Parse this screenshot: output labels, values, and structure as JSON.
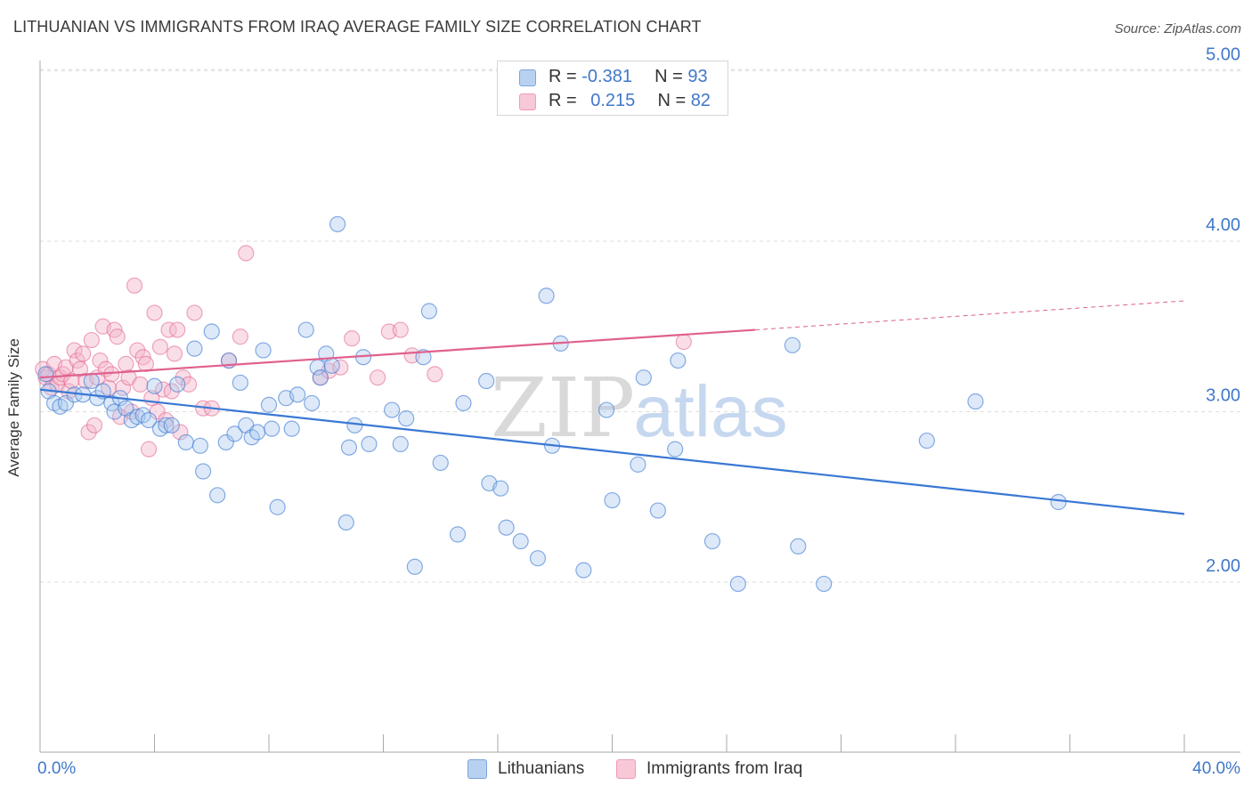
{
  "title": "LITHUANIAN VS IMMIGRANTS FROM IRAQ AVERAGE FAMILY SIZE CORRELATION CHART",
  "source": "Source: ZipAtlas.com",
  "watermark": {
    "zip": "ZIP",
    "atlas": "atlas"
  },
  "colors": {
    "blue": "#3a78d4",
    "blue_fill": "#a9c8ee",
    "pink": "#e0608e",
    "pink_fill": "#f4b6ca",
    "axis_label": "#3f78c9",
    "grid": "#dddddd"
  },
  "legend_top": {
    "rows": [
      {
        "r_label": "R = ",
        "r_value": "-0.381",
        "n_label": "N = ",
        "n_value": "93"
      },
      {
        "r_label": "R = ",
        "r_value": "0.215",
        "n_label": "N = ",
        "n_value": "82"
      }
    ]
  },
  "legend_bottom": {
    "series1": "Lithuanians",
    "series2": "Immigrants from Iraq"
  },
  "chart_data": {
    "type": "scatter",
    "title": "LITHUANIAN VS IMMIGRANTS FROM IRAQ AVERAGE FAMILY SIZE CORRELATION CHART",
    "xlabel": "",
    "ylabel": "Average Family Size",
    "xlim": [
      0,
      40
    ],
    "ylim": [
      1.0,
      5.2
    ],
    "x_tick_labels": [
      "0.0%",
      "40.0%"
    ],
    "y_ticks": [
      2.0,
      3.0,
      4.0,
      5.0
    ],
    "y_tick_labels": [
      "2.00",
      "3.00",
      "4.00",
      "5.00"
    ],
    "grid": true,
    "series": [
      {
        "name": "Lithuanians",
        "r": -0.381,
        "n": 93,
        "trend": {
          "x": [
            0,
            40
          ],
          "y": [
            3.13,
            2.4
          ]
        },
        "points": [
          [
            0.2,
            3.22
          ],
          [
            0.3,
            3.12
          ],
          [
            0.5,
            3.05
          ],
          [
            0.7,
            3.03
          ],
          [
            0.9,
            3.05
          ],
          [
            1.2,
            3.1
          ],
          [
            1.5,
            3.1
          ],
          [
            1.8,
            3.18
          ],
          [
            2.0,
            3.08
          ],
          [
            2.2,
            3.12
          ],
          [
            2.5,
            3.05
          ],
          [
            2.6,
            3.0
          ],
          [
            2.8,
            3.08
          ],
          [
            3.0,
            3.02
          ],
          [
            3.2,
            2.95
          ],
          [
            3.4,
            2.97
          ],
          [
            3.6,
            2.98
          ],
          [
            3.8,
            2.95
          ],
          [
            4.0,
            3.15
          ],
          [
            4.2,
            2.9
          ],
          [
            4.4,
            2.92
          ],
          [
            4.6,
            2.92
          ],
          [
            4.8,
            3.16
          ],
          [
            5.1,
            2.82
          ],
          [
            5.4,
            3.37
          ],
          [
            5.6,
            2.8
          ],
          [
            5.7,
            2.65
          ],
          [
            6.0,
            3.47
          ],
          [
            6.2,
            2.51
          ],
          [
            6.5,
            2.82
          ],
          [
            6.6,
            3.3
          ],
          [
            6.8,
            2.87
          ],
          [
            7.0,
            3.17
          ],
          [
            7.2,
            2.92
          ],
          [
            7.4,
            2.85
          ],
          [
            7.6,
            2.88
          ],
          [
            7.8,
            3.36
          ],
          [
            8.0,
            3.04
          ],
          [
            8.1,
            2.9
          ],
          [
            8.3,
            2.44
          ],
          [
            8.6,
            3.08
          ],
          [
            8.8,
            2.9
          ],
          [
            9.0,
            3.1
          ],
          [
            9.3,
            3.48
          ],
          [
            9.5,
            3.05
          ],
          [
            9.7,
            3.26
          ],
          [
            9.8,
            3.2
          ],
          [
            10.0,
            3.34
          ],
          [
            10.2,
            3.27
          ],
          [
            10.4,
            4.1
          ],
          [
            10.7,
            2.35
          ],
          [
            10.8,
            2.79
          ],
          [
            11.0,
            2.92
          ],
          [
            11.3,
            3.32
          ],
          [
            11.5,
            2.81
          ],
          [
            12.3,
            3.01
          ],
          [
            12.6,
            2.81
          ],
          [
            12.8,
            2.96
          ],
          [
            13.1,
            2.09
          ],
          [
            13.4,
            3.32
          ],
          [
            13.6,
            3.59
          ],
          [
            14.0,
            2.7
          ],
          [
            14.6,
            2.28
          ],
          [
            14.8,
            3.05
          ],
          [
            15.6,
            3.18
          ],
          [
            15.7,
            2.58
          ],
          [
            16.1,
            2.55
          ],
          [
            16.3,
            2.32
          ],
          [
            16.8,
            2.24
          ],
          [
            17.4,
            2.14
          ],
          [
            17.7,
            3.68
          ],
          [
            17.9,
            2.8
          ],
          [
            18.2,
            3.4
          ],
          [
            19.0,
            2.07
          ],
          [
            19.8,
            3.01
          ],
          [
            20.0,
            2.48
          ],
          [
            20.9,
            2.69
          ],
          [
            21.1,
            3.2
          ],
          [
            21.6,
            2.42
          ],
          [
            22.2,
            2.78
          ],
          [
            22.3,
            3.3
          ],
          [
            23.5,
            2.24
          ],
          [
            24.4,
            1.99
          ],
          [
            26.3,
            3.39
          ],
          [
            26.5,
            2.21
          ],
          [
            27.4,
            1.99
          ],
          [
            31.0,
            2.83
          ],
          [
            32.7,
            3.06
          ],
          [
            35.6,
            2.47
          ]
        ]
      },
      {
        "name": "Immigrants from Iraq",
        "r": 0.215,
        "n": 82,
        "trend": {
          "x": [
            0,
            25
          ],
          "y": [
            3.2,
            3.48
          ]
        },
        "trend_dashed": {
          "x": [
            25,
            40
          ],
          "y": [
            3.48,
            3.65
          ]
        },
        "points": [
          [
            0.1,
            3.25
          ],
          [
            0.2,
            3.2
          ],
          [
            0.3,
            3.22
          ],
          [
            0.4,
            3.14
          ],
          [
            0.5,
            3.28
          ],
          [
            0.6,
            3.16
          ],
          [
            0.7,
            3.2
          ],
          [
            0.8,
            3.22
          ],
          [
            0.9,
            3.26
          ],
          [
            1.0,
            3.12
          ],
          [
            1.1,
            3.18
          ],
          [
            1.2,
            3.36
          ],
          [
            1.3,
            3.3
          ],
          [
            1.4,
            3.25
          ],
          [
            1.5,
            3.34
          ],
          [
            1.6,
            3.18
          ],
          [
            1.7,
            2.88
          ],
          [
            1.8,
            3.42
          ],
          [
            1.9,
            2.92
          ],
          [
            2.0,
            3.2
          ],
          [
            2.1,
            3.3
          ],
          [
            2.2,
            3.5
          ],
          [
            2.3,
            3.25
          ],
          [
            2.4,
            3.14
          ],
          [
            2.5,
            3.22
          ],
          [
            2.6,
            3.48
          ],
          [
            2.7,
            3.44
          ],
          [
            2.8,
            2.97
          ],
          [
            2.9,
            3.14
          ],
          [
            3.0,
            3.28
          ],
          [
            3.1,
            3.2
          ],
          [
            3.2,
            3.0
          ],
          [
            3.3,
            3.74
          ],
          [
            3.4,
            3.36
          ],
          [
            3.5,
            3.16
          ],
          [
            3.6,
            3.32
          ],
          [
            3.7,
            3.28
          ],
          [
            3.8,
            2.78
          ],
          [
            3.9,
            3.08
          ],
          [
            4.0,
            3.58
          ],
          [
            4.1,
            3.0
          ],
          [
            4.2,
            3.38
          ],
          [
            4.3,
            3.13
          ],
          [
            4.4,
            2.95
          ],
          [
            4.5,
            3.48
          ],
          [
            4.6,
            3.12
          ],
          [
            4.7,
            3.34
          ],
          [
            4.8,
            3.48
          ],
          [
            4.9,
            2.88
          ],
          [
            5.0,
            3.2
          ],
          [
            5.2,
            3.16
          ],
          [
            5.4,
            3.58
          ],
          [
            5.7,
            3.02
          ],
          [
            6.0,
            3.02
          ],
          [
            6.6,
            3.3
          ],
          [
            7.0,
            3.44
          ],
          [
            7.2,
            3.93
          ],
          [
            9.8,
            3.2
          ],
          [
            10.1,
            3.24
          ],
          [
            10.5,
            3.26
          ],
          [
            10.9,
            3.43
          ],
          [
            11.8,
            3.2
          ],
          [
            12.2,
            3.47
          ],
          [
            12.6,
            3.48
          ],
          [
            13.0,
            3.33
          ],
          [
            13.8,
            3.22
          ],
          [
            22.5,
            3.41
          ]
        ]
      }
    ]
  }
}
